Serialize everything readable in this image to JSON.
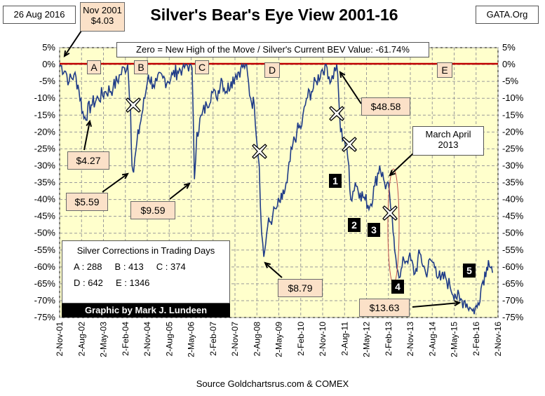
{
  "header": {
    "date": "26 Aug 2016",
    "title": "Silver's Bear's Eye View 2001-16",
    "site": "GATA.Org"
  },
  "start_box": {
    "line1": "Nov 2001",
    "line2": "$4.03"
  },
  "zero_note": "Zero = New High of the Move / Silver's Current BEV Value: -61.74%",
  "source": "Source Goldchartsrus.com & COMEX",
  "credit": "Graphic by Mark J. Lundeen",
  "corrections": {
    "title": "Silver Corrections in Trading Days",
    "row1": "A : 288     B : 413     C : 374",
    "row2": "D : 642     E : 1346"
  },
  "price_labels": [
    "$4.27",
    "$5.59",
    "$9.59",
    "$8.79",
    "$48.58",
    "$13.63"
  ],
  "march_april": {
    "line1": "March April",
    "line2": "2013"
  },
  "letters": [
    "A",
    "B",
    "C",
    "D",
    "E"
  ],
  "numbers": [
    "1",
    "2",
    "3",
    "4",
    "5"
  ],
  "colors": {
    "plot_bg": "#ffffcc",
    "line": "#1f3c88",
    "zero_line": "#c00000",
    "marker_bg": "#fbe1c8"
  },
  "chart_data": {
    "type": "line",
    "title": "Silver's Bear's Eye View 2001-16",
    "ylabel": "",
    "xlabel": "",
    "ylim": [
      -75,
      5
    ],
    "ytick_labels": [
      "5%",
      "0%",
      "-5%",
      "-10%",
      "-15%",
      "-20%",
      "-25%",
      "-30%",
      "-35%",
      "-40%",
      "-45%",
      "-50%",
      "-55%",
      "-60%",
      "-65%",
      "-70%",
      "-75%"
    ],
    "xtick_labels": [
      "2-Nov-01",
      "2-Aug-02",
      "2-May-03",
      "2-Feb-04",
      "2-Nov-04",
      "2-Aug-05",
      "2-May-06",
      "2-Feb-07",
      "2-Nov-07",
      "2-Aug-08",
      "2-May-09",
      "2-Feb-10",
      "2-Nov-10",
      "2-Aug-11",
      "2-May-12",
      "2-Feb-13",
      "2-Nov-13",
      "2-Aug-14",
      "2-May-15",
      "2-Feb-16",
      "2-Nov-16"
    ],
    "series": [
      {
        "x": [
          "2001-11-02",
          "2002-01-15",
          "2002-03-01",
          "2002-05-01",
          "2002-06-20",
          "2002-09-01",
          "2002-12-01",
          "2003-03-01",
          "2003-06-01",
          "2003-09-01",
          "2003-12-01",
          "2004-01-20",
          "2004-03-01",
          "2004-04-05",
          "2004-04-25",
          "2004-05-15",
          "2004-06-15",
          "2004-08-01",
          "2004-10-01",
          "2004-11-15",
          "2005-01-15",
          "2005-03-01",
          "2005-05-15",
          "2005-07-15",
          "2005-09-15",
          "2005-11-15",
          "2006-01-15",
          "2006-04-15",
          "2006-05-15",
          "2006-06-14",
          "2006-07-15",
          "2006-09-15",
          "2006-11-15",
          "2007-01-15",
          "2007-03-15",
          "2007-05-15",
          "2007-07-15",
          "2007-09-15",
          "2007-11-15",
          "2008-01-15",
          "2008-03-15",
          "2008-05-15",
          "2008-07-01",
          "2008-09-01",
          "2008-10-01",
          "2008-10-28",
          "2008-12-15",
          "2009-02-15",
          "2009-04-15",
          "2009-06-15",
          "2009-08-15",
          "2009-10-15",
          "2009-12-15",
          "2010-02-15",
          "2010-04-15",
          "2010-06-15",
          "2010-08-15",
          "2010-10-15",
          "2010-12-15",
          "2011-02-15",
          "2011-04-28",
          "2011-06-15",
          "2011-08-01",
          "2011-09-26",
          "2011-10-20",
          "2011-12-15",
          "2012-02-15",
          "2012-04-15",
          "2012-06-15",
          "2012-08-15",
          "2012-10-15",
          "2012-12-15",
          "2013-02-15",
          "2013-04-01",
          "2013-04-20",
          "2013-06-28",
          "2013-08-15",
          "2013-10-15",
          "2013-12-31",
          "2014-03-01",
          "2014-05-15",
          "2014-07-15",
          "2014-09-15",
          "2014-11-15",
          "2015-01-15",
          "2015-03-15",
          "2015-05-15",
          "2015-07-15",
          "2015-09-15",
          "2015-11-15",
          "2015-12-17",
          "2016-02-15",
          "2016-04-15",
          "2016-06-15",
          "2016-07-05",
          "2016-08-26"
        ],
        "values": [
          0,
          -2,
          -5,
          -3,
          -6,
          -16,
          -12,
          -10,
          -8,
          -7,
          -3,
          -1,
          0,
          -12,
          -30,
          -32,
          -25,
          -18,
          -10,
          -3,
          -6,
          -5,
          -4,
          -5,
          -3,
          -2,
          -1,
          0,
          -1,
          -34,
          -20,
          -15,
          -12,
          -8,
          -10,
          -4,
          -8,
          -5,
          -3,
          -1,
          0,
          -10,
          -12,
          -30,
          -50,
          -57,
          -48,
          -45,
          -42,
          -40,
          -35,
          -25,
          -20,
          -18,
          -10,
          -8,
          -5,
          -2,
          0,
          -5,
          0,
          -20,
          -22,
          -30,
          -40,
          -35,
          -38,
          -40,
          -42,
          -36,
          -30,
          -35,
          -38,
          -50,
          -55,
          -63,
          -58,
          -57,
          -62,
          -56,
          -62,
          -58,
          -60,
          -64,
          -63,
          -66,
          -68,
          -70,
          -70,
          -72,
          -73,
          -72,
          -65,
          -60,
          -58,
          -61.74
        ]
      }
    ],
    "grid": true,
    "annotations": [
      "A",
      "B",
      "C",
      "D",
      "E",
      "1",
      "2",
      "3",
      "4",
      "5",
      "$4.27",
      "$5.59",
      "$9.59",
      "$8.79",
      "$48.58",
      "$13.63",
      "Nov 2001 $4.03",
      "March April 2013"
    ]
  }
}
